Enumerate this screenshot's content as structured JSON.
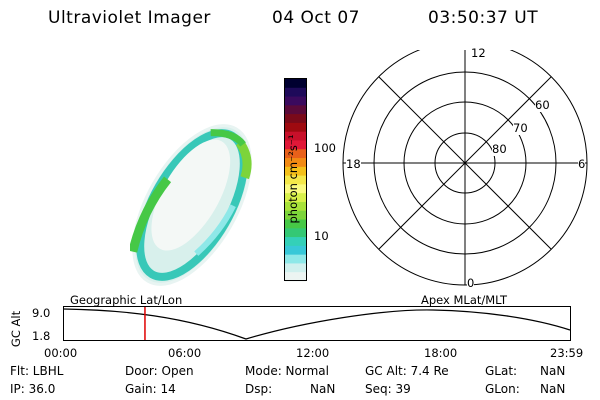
{
  "header": {
    "instrument": "Ultraviolet Imager",
    "date": "04 Oct 07",
    "time": "03:50:37 UT"
  },
  "colorbar": {
    "label": "photon cm⁻²s⁻¹",
    "ticks": [
      "100",
      "10"
    ],
    "colors": [
      "#000030",
      "#1e0a5a",
      "#3a0a5e",
      "#5a0a3a",
      "#7a0a1a",
      "#9e0a10",
      "#c8102a",
      "#e01838",
      "#e8601a",
      "#f28a14",
      "#f4c01a",
      "#f4e84a",
      "#fafa80",
      "#d8f04a",
      "#a8e23a",
      "#7cd43a",
      "#46c846",
      "#34c874",
      "#34d0b8",
      "#38c8d8",
      "#8ee8e8",
      "#d0f0ee",
      "#ecf4f2"
    ]
  },
  "polar_plot": {
    "labels": {
      "top": "12",
      "left": "18",
      "right": "6",
      "bottom": "0"
    },
    "latitude_labels": [
      "60",
      "70",
      "80"
    ]
  },
  "timeline": {
    "left_title": "Geographic Lat/Lon",
    "right_title": "Apex  MLat/MLT",
    "axis_label": "GC Alt",
    "y_max": "9.0",
    "y_min": "1.8",
    "x_ticks": [
      "00:00",
      "06:00",
      "12:00",
      "18:00",
      "23:59"
    ],
    "current_marker_fraction": 0.16
  },
  "info": {
    "flt": "Flt: LBHL",
    "ip": "IP: 36.0",
    "door": "Door: Open",
    "gain": "Gain: 14",
    "mode": "Mode: Normal",
    "dsp": "Dsp:",
    "dsp_val": "NaN",
    "gcalt": "GC Alt: 7.4 Re",
    "seq": "Seq: 39",
    "glat": "GLat:",
    "glat_val": "NaN",
    "glon": "GLon:",
    "glon_val": "NaN"
  }
}
